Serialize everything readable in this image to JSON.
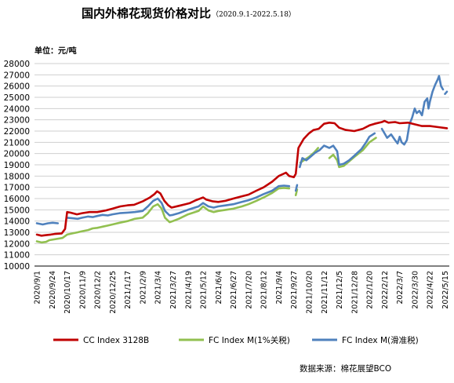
{
  "chart_data": {
    "type": "line",
    "title": "国内外棉花现货价格对比",
    "subtitle": "（2020.9.1-2022.5.18）",
    "unit_label": "单位：元/吨",
    "source": "数据来源：棉花展望BCO",
    "ylim": [
      10000,
      28000
    ],
    "y_ticks": [
      10000,
      11000,
      12000,
      13000,
      14000,
      15000,
      16000,
      17000,
      18000,
      19000,
      20000,
      21000,
      22000,
      23000,
      24000,
      25000,
      26000,
      27000,
      28000
    ],
    "x_ticks": [
      "2020/9/1",
      "2020/9/24",
      "2020/10/17",
      "2020/11/9",
      "2020/12/2",
      "2020/12/25",
      "2021/1/17",
      "2021/2/9",
      "2021/3/4",
      "2021/3/27",
      "2021/4/19",
      "2021/5/12",
      "2021/6/4",
      "2021/6/27",
      "2021/7/20",
      "2021/8/12",
      "2021/9/4",
      "2021/9/27",
      "2021/10/20",
      "2021/11/12",
      "2021/12/5",
      "2021/12/28",
      "2022/1/20",
      "2022/2/12",
      "2022/3/7",
      "2022/3/30",
      "2022/4/22",
      "2022/5/15"
    ],
    "x_range": [
      "2020/9/1",
      "2022/5/18"
    ],
    "grid": "horizontal",
    "legend_position": "bottom",
    "series": [
      {
        "name": "CC Index 3128B",
        "color": "#c00000",
        "points": [
          [
            "2020/9/1",
            12800
          ],
          [
            "2020/9/8",
            12700
          ],
          [
            "2020/9/15",
            12750
          ],
          [
            "2020/9/22",
            12800
          ],
          [
            "2020/9/28",
            12850
          ],
          [
            "2020/10/9",
            12900
          ],
          [
            "2020/10/14",
            13300
          ],
          [
            "2020/10/17",
            14800
          ],
          [
            "2020/10/22",
            14750
          ],
          [
            "2020/11/1",
            14600
          ],
          [
            "2020/11/9",
            14700
          ],
          [
            "2020/11/20",
            14800
          ],
          [
            "2020/12/2",
            14800
          ],
          [
            "2020/12/15",
            14950
          ],
          [
            "2020/12/25",
            15100
          ],
          [
            "2021/1/6",
            15300
          ],
          [
            "2021/1/17",
            15400
          ],
          [
            "2021/1/27",
            15450
          ],
          [
            "2021/2/9",
            15750
          ],
          [
            "2021/2/20",
            16100
          ],
          [
            "2021/2/27",
            16400
          ],
          [
            "2021/3/3",
            16650
          ],
          [
            "2021/3/8",
            16450
          ],
          [
            "2021/3/14",
            15800
          ],
          [
            "2021/3/20",
            15400
          ],
          [
            "2021/3/25",
            15200
          ],
          [
            "2021/4/5",
            15350
          ],
          [
            "2021/4/15",
            15500
          ],
          [
            "2021/4/22",
            15600
          ],
          [
            "2021/5/1",
            15850
          ],
          [
            "2021/5/12",
            16100
          ],
          [
            "2021/5/17",
            15900
          ],
          [
            "2021/5/27",
            15750
          ],
          [
            "2021/6/4",
            15700
          ],
          [
            "2021/6/15",
            15800
          ],
          [
            "2021/6/27",
            16000
          ],
          [
            "2021/7/10",
            16200
          ],
          [
            "2021/7/20",
            16350
          ],
          [
            "2021/8/1",
            16700
          ],
          [
            "2021/8/12",
            17000
          ],
          [
            "2021/8/25",
            17500
          ],
          [
            "2021/9/4",
            18000
          ],
          [
            "2021/9/15",
            18300
          ],
          [
            "2021/9/20",
            18000
          ],
          [
            "2021/9/27",
            17900
          ],
          [
            "2021/9/30",
            18200
          ],
          [
            "2021/10/4",
            20500
          ],
          [
            "2021/10/12",
            21300
          ],
          [
            "2021/10/20",
            21800
          ],
          [
            "2021/10/27",
            22100
          ],
          [
            "2021/11/4",
            22200
          ],
          [
            "2021/11/12",
            22650
          ],
          [
            "2021/11/20",
            22750
          ],
          [
            "2021/11/28",
            22700
          ],
          [
            "2021/12/5",
            22300
          ],
          [
            "2021/12/15",
            22100
          ],
          [
            "2021/12/28",
            22000
          ],
          [
            "2022/1/10",
            22200
          ],
          [
            "2022/1/20",
            22500
          ],
          [
            "2022/1/28",
            22650
          ],
          [
            "2022/2/8",
            22800
          ],
          [
            "2022/2/12",
            22900
          ],
          [
            "2022/2/18",
            22750
          ],
          [
            "2022/2/28",
            22800
          ],
          [
            "2022/3/7",
            22700
          ],
          [
            "2022/3/20",
            22750
          ],
          [
            "2022/3/30",
            22600
          ],
          [
            "2022/4/10",
            22450
          ],
          [
            "2022/4/22",
            22450
          ],
          [
            "2022/5/5",
            22350
          ],
          [
            "2022/5/18",
            22250
          ]
        ]
      },
      {
        "name": "FC Index M(1%关税)",
        "color": "#92c050",
        "points": [
          [
            "2020/9/1",
            12200
          ],
          [
            "2020/9/8",
            12100
          ],
          [
            "2020/9/15",
            12150
          ],
          [
            "2020/9/20",
            12300
          ],
          [
            "2020/10/10",
            12500
          ],
          [
            "2020/10/17",
            12800
          ],
          [
            "2020/10/25",
            12900
          ],
          [
            "2020/11/2",
            13000
          ],
          [
            "2020/11/9",
            13100
          ],
          [
            "2020/11/18",
            13200
          ],
          [
            "2020/11/25",
            13350
          ],
          [
            "2020/12/2",
            13400
          ],
          [
            "2020/12/10",
            13500
          ],
          [
            "2020/12/18",
            13600
          ],
          [
            "2020/12/25",
            13700
          ],
          [
            "2021/1/5",
            13850
          ],
          [
            "2021/1/17",
            14000
          ],
          [
            "2021/1/28",
            14200
          ],
          [
            "2021/2/9",
            14300
          ],
          [
            "2021/2/17",
            14700
          ],
          [
            "2021/2/25",
            15300
          ],
          [
            "2021/3/4",
            15500
          ],
          [
            "2021/3/10",
            15100
          ],
          [
            "2021/3/15",
            14300
          ],
          [
            "2021/3/22",
            13900
          ],
          [
            "2021/3/27",
            14000
          ],
          [
            "2021/4/5",
            14200
          ],
          [
            "2021/4/19",
            14600
          ],
          [
            "2021/5/5",
            14900
          ],
          [
            "2021/5/12",
            15300
          ],
          [
            "2021/5/20",
            14950
          ],
          [
            "2021/5/28",
            14800
          ],
          [
            "2021/6/4",
            14900
          ],
          [
            "2021/6/16",
            15000
          ],
          [
            "2021/6/27",
            15100
          ],
          [
            "2021/7/10",
            15300
          ],
          [
            "2021/7/20",
            15500
          ],
          [
            "2021/8/1",
            15800
          ],
          [
            "2021/8/12",
            16100
          ],
          [
            "2021/8/25",
            16500
          ],
          [
            "2021/9/4",
            16900
          ],
          [
            "2021/9/12",
            16950
          ],
          [
            "2021/9/20",
            16900
          ],
          null,
          [
            "2021/9/30",
            16300
          ],
          [
            "2021/10/2",
            16800
          ],
          null,
          [
            "2021/10/7",
            19200
          ],
          [
            "2021/10/20",
            19700
          ],
          [
            "2021/10/28",
            20100
          ],
          [
            "2021/11/3",
            20500
          ],
          null,
          [
            "2021/11/20",
            19600
          ],
          [
            "2021/11/26",
            19900
          ],
          [
            "2021/12/2",
            19400
          ],
          [
            "2021/12/5",
            18800
          ],
          [
            "2021/12/12",
            18900
          ],
          [
            "2021/12/20",
            19300
          ],
          [
            "2021/12/28",
            19700
          ],
          [
            "2022/1/10",
            20300
          ],
          [
            "2022/1/20",
            21000
          ],
          [
            "2022/1/30",
            21400
          ]
        ]
      },
      {
        "name": "FC Index M(滑准税)",
        "color": "#4f81bd",
        "points": [
          [
            "2020/9/1",
            13800
          ],
          [
            "2020/9/10",
            13700
          ],
          [
            "2020/9/18",
            13800
          ],
          [
            "2020/9/25",
            13850
          ],
          [
            "2020/10/3",
            13800
          ],
          null,
          [
            "2020/10/17",
            14300
          ],
          [
            "2020/10/25",
            14250
          ],
          [
            "2020/11/2",
            14200
          ],
          [
            "2020/11/9",
            14300
          ],
          [
            "2020/11/18",
            14400
          ],
          [
            "2020/11/25",
            14350
          ],
          [
            "2020/12/2",
            14450
          ],
          [
            "2020/12/10",
            14550
          ],
          [
            "2020/12/18",
            14500
          ],
          [
            "2020/12/25",
            14600
          ],
          [
            "2021/1/5",
            14700
          ],
          [
            "2021/1/17",
            14750
          ],
          [
            "2021/1/28",
            14800
          ],
          [
            "2021/2/9",
            14900
          ],
          [
            "2021/2/17",
            15300
          ],
          [
            "2021/2/25",
            15800
          ],
          [
            "2021/3/4",
            16000
          ],
          [
            "2021/3/10",
            15600
          ],
          [
            "2021/3/15",
            14900
          ],
          [
            "2021/3/22",
            14500
          ],
          [
            "2021/3/27",
            14550
          ],
          [
            "2021/4/5",
            14700
          ],
          [
            "2021/4/19",
            15000
          ],
          [
            "2021/5/5",
            15300
          ],
          [
            "2021/5/12",
            15600
          ],
          [
            "2021/5/20",
            15300
          ],
          [
            "2021/5/28",
            15200
          ],
          [
            "2021/6/4",
            15300
          ],
          [
            "2021/6/16",
            15400
          ],
          [
            "2021/6/27",
            15500
          ],
          [
            "2021/7/10",
            15700
          ],
          [
            "2021/7/20",
            15850
          ],
          [
            "2021/8/1",
            16100
          ],
          [
            "2021/8/12",
            16400
          ],
          [
            "2021/8/25",
            16700
          ],
          [
            "2021/9/4",
            17100
          ],
          [
            "2021/9/12",
            17150
          ],
          [
            "2021/9/20",
            17100
          ],
          null,
          [
            "2021/9/30",
            16700
          ],
          [
            "2021/10/2",
            17200
          ],
          null,
          [
            "2021/10/6",
            18800
          ],
          [
            "2021/10/10",
            19600
          ],
          [
            "2021/10/16",
            19400
          ],
          [
            "2021/10/22",
            19700
          ],
          [
            "2021/10/30",
            20100
          ],
          [
            "2021/11/5",
            20300
          ],
          [
            "2021/11/12",
            20700
          ],
          [
            "2021/11/20",
            20500
          ],
          [
            "2021/11/26",
            20700
          ],
          [
            "2021/12/2",
            20200
          ],
          [
            "2021/12/5",
            19000
          ],
          [
            "2021/12/12",
            19100
          ],
          [
            "2021/12/20",
            19400
          ],
          [
            "2021/12/28",
            19800
          ],
          [
            "2022/1/8",
            20400
          ],
          [
            "2022/1/15",
            21000
          ],
          [
            "2022/1/20",
            21500
          ],
          [
            "2022/1/28",
            21800
          ],
          null,
          [
            "2022/2/8",
            22200
          ],
          [
            "2022/2/12",
            21800
          ],
          [
            "2022/2/16",
            21400
          ],
          [
            "2022/2/22",
            21700
          ],
          [
            "2022/2/28",
            21200
          ],
          [
            "2022/3/4",
            20900
          ],
          [
            "2022/3/7",
            21500
          ],
          [
            "2022/3/10",
            21000
          ],
          [
            "2022/3/14",
            20800
          ],
          [
            "2022/3/18",
            21200
          ],
          [
            "2022/3/22",
            22600
          ],
          [
            "2022/3/26",
            23200
          ],
          [
            "2022/3/30",
            24000
          ],
          [
            "2022/4/2",
            23600
          ],
          [
            "2022/4/6",
            23800
          ],
          [
            "2022/4/10",
            23400
          ],
          [
            "2022/4/14",
            24600
          ],
          [
            "2022/4/18",
            24900
          ],
          [
            "2022/4/20",
            24000
          ],
          [
            "2022/4/22",
            24600
          ],
          [
            "2022/4/26",
            25500
          ],
          [
            "2022/4/30",
            26100
          ],
          [
            "2022/5/4",
            26600
          ],
          [
            "2022/5/6",
            26900
          ],
          [
            "2022/5/9",
            26000
          ],
          [
            "2022/5/12",
            25700
          ],
          null,
          [
            "2022/5/15",
            25300
          ],
          [
            "2022/5/18",
            25500
          ]
        ]
      }
    ]
  }
}
